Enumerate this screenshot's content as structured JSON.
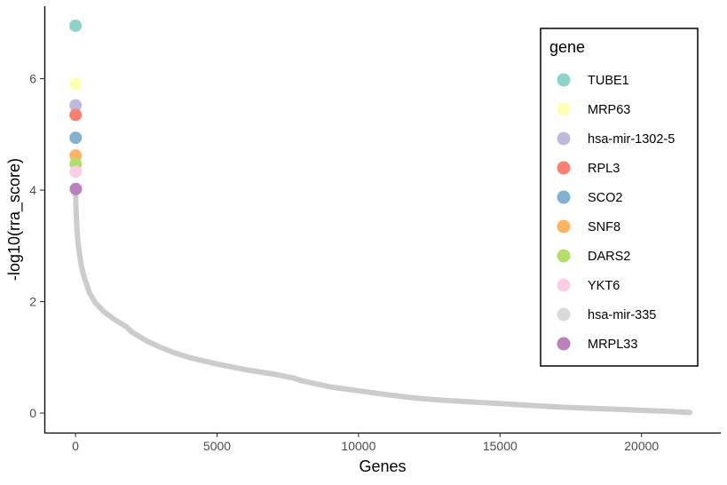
{
  "chart_data": {
    "type": "scatter",
    "title": "",
    "xlabel": "Genes",
    "ylabel": "-log10(rra_score)",
    "xlim": [
      -1100,
      22800
    ],
    "ylim": [
      -0.35,
      7.3
    ],
    "x_ticks": [
      0,
      5000,
      10000,
      15000,
      20000
    ],
    "x_tick_labels": [
      "0",
      "5000",
      "10000",
      "15000",
      "20000"
    ],
    "y_ticks": [
      0,
      2,
      4,
      6
    ],
    "y_tick_labels": [
      "0",
      "2",
      "4",
      "6"
    ],
    "grid": false,
    "legend": {
      "title": "gene",
      "position": "top-right"
    },
    "series": [
      {
        "name": "TUBE1",
        "color": "#8dd3c7",
        "x": [
          1
        ],
        "y": [
          6.95
        ]
      },
      {
        "name": "MRP63",
        "color": "#ffffb3",
        "x": [
          2
        ],
        "y": [
          5.9
        ]
      },
      {
        "name": "hsa-mir-1302-5",
        "color": "#bebada",
        "x": [
          3
        ],
        "y": [
          5.52
        ]
      },
      {
        "name": "RPL3",
        "color": "#fb8072",
        "x": [
          4
        ],
        "y": [
          5.35
        ]
      },
      {
        "name": "SCO2",
        "color": "#80b1d3",
        "x": [
          5
        ],
        "y": [
          4.94
        ]
      },
      {
        "name": "SNF8",
        "color": "#fdb462",
        "x": [
          6
        ],
        "y": [
          4.62
        ]
      },
      {
        "name": "DARS2",
        "color": "#b3de69",
        "x": [
          7
        ],
        "y": [
          4.47
        ]
      },
      {
        "name": "YKT6",
        "color": "#fccde5",
        "x": [
          8
        ],
        "y": [
          4.33
        ]
      },
      {
        "name": "hsa-mir-335",
        "color": "#d9d9d9",
        "curve_color": "#cccccc",
        "x": [
          9,
          10,
          50,
          100,
          200,
          300,
          500,
          700,
          1000,
          1400,
          1800,
          2000,
          2500,
          3000,
          3500,
          4000,
          5000,
          6000,
          7000,
          7700,
          8000,
          9000,
          10000,
          11000,
          12000,
          13000,
          14000,
          15000,
          16000,
          17000,
          18000,
          19000,
          20000,
          21000,
          21700
        ],
        "y": [
          4.02,
          3.8,
          3.3,
          3.0,
          2.65,
          2.45,
          2.15,
          1.98,
          1.82,
          1.67,
          1.55,
          1.45,
          1.3,
          1.18,
          1.08,
          1.0,
          0.88,
          0.78,
          0.7,
          0.63,
          0.58,
          0.47,
          0.4,
          0.33,
          0.27,
          0.23,
          0.2,
          0.17,
          0.14,
          0.11,
          0.09,
          0.07,
          0.05,
          0.03,
          0.01
        ]
      },
      {
        "name": "MRPL33",
        "color": "#bc80bd",
        "x": [
          11
        ],
        "y": [
          4.02
        ]
      }
    ]
  }
}
